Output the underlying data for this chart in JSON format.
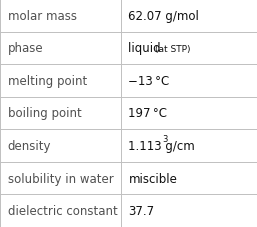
{
  "rows": [
    {
      "label": "molar mass",
      "value": "62.07 g/mol",
      "note": null,
      "superscript": null
    },
    {
      "label": "phase",
      "value": "liquid",
      "note": "(at STP)",
      "superscript": null
    },
    {
      "label": "melting point",
      "value": "−13 °C",
      "note": null,
      "superscript": null
    },
    {
      "label": "boiling point",
      "value": "197 °C",
      "note": null,
      "superscript": null
    },
    {
      "label": "density",
      "value": "1.113 g/cm",
      "note": null,
      "superscript": "3"
    },
    {
      "label": "solubility in water",
      "value": "miscible",
      "note": null,
      "superscript": null
    },
    {
      "label": "dielectric constant",
      "value": "37.7",
      "note": null,
      "superscript": null
    }
  ],
  "col_split": 0.47,
  "background_color": "#ffffff",
  "grid_color": "#c0c0c0",
  "label_fontsize": 8.5,
  "value_fontsize": 8.5,
  "note_fontsize": 6.5,
  "sup_fontsize": 6.0,
  "label_color": "#505050",
  "value_color": "#101010",
  "font_family": "DejaVu Sans"
}
